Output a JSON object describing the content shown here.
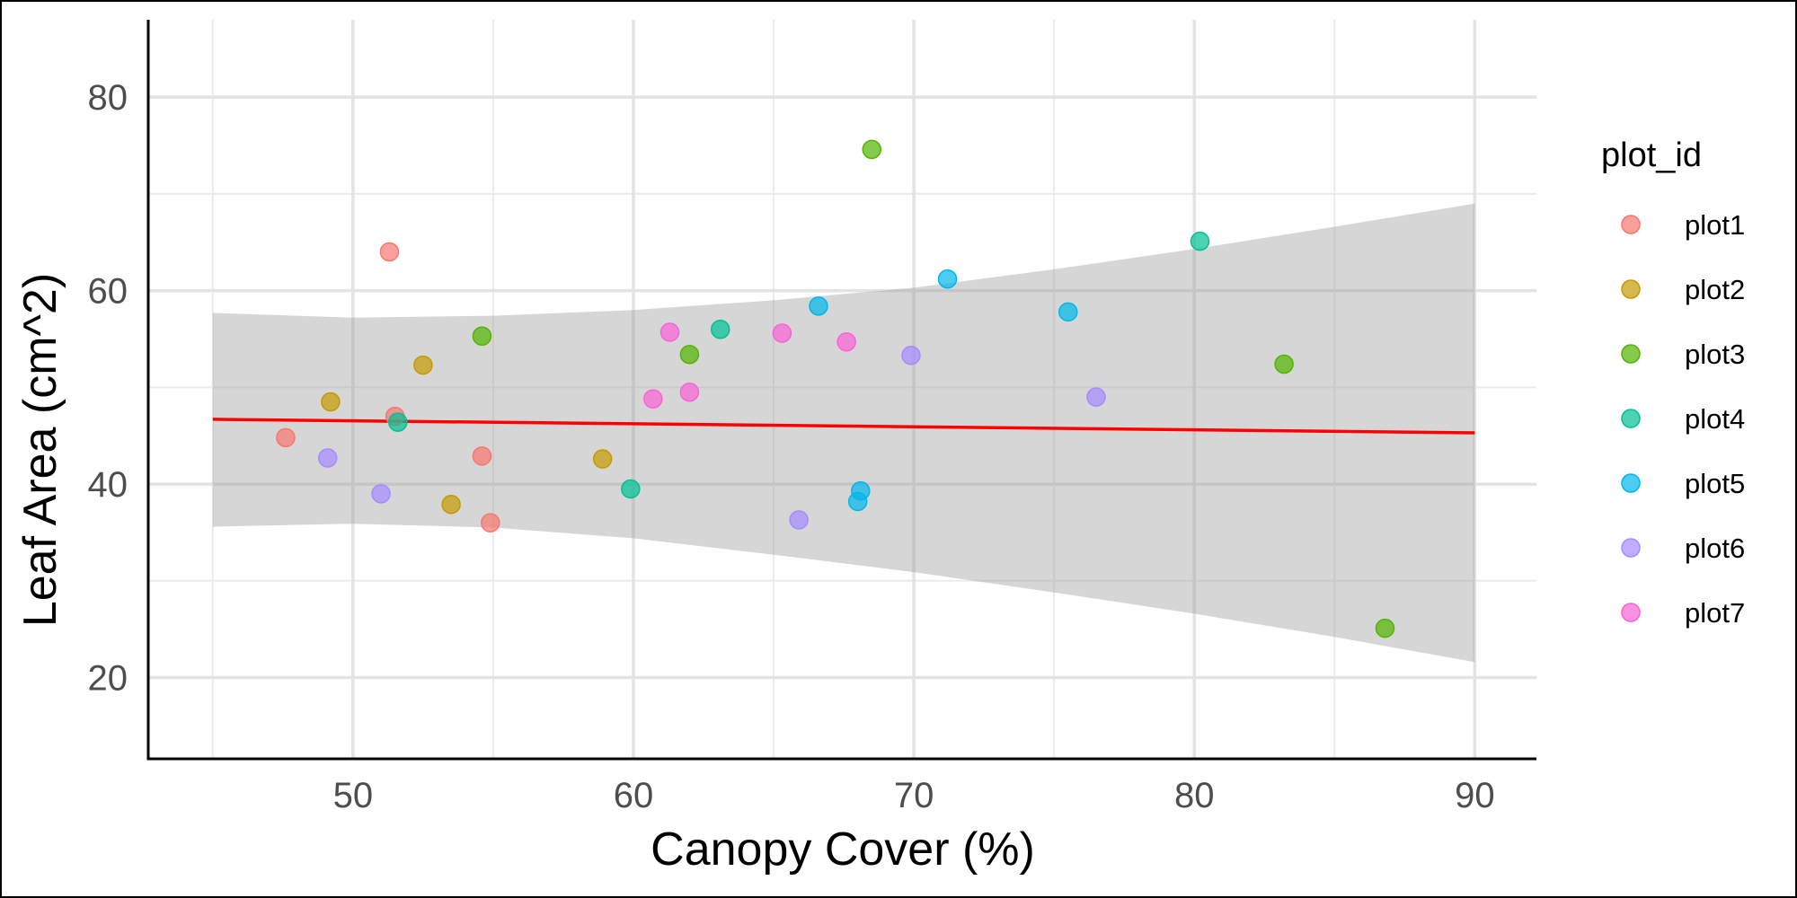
{
  "chart_data": {
    "type": "scatter",
    "xlabel": "Canopy Cover (%)",
    "ylabel": "Leaf Area (cm^2)",
    "xlim": [
      42.7,
      92.2
    ],
    "ylim": [
      11.6,
      88.0
    ],
    "x_ticks": [
      50,
      60,
      70,
      80,
      90
    ],
    "y_ticks": [
      20,
      40,
      60,
      80
    ],
    "grid": true,
    "legend": {
      "title": "plot_id",
      "position": "right"
    },
    "series": [
      {
        "name": "plot1",
        "color": "#F8766D",
        "points": [
          [
            47.6,
            44.8
          ],
          [
            51.3,
            64.0
          ],
          [
            51.5,
            47.0
          ],
          [
            54.6,
            42.9
          ],
          [
            54.9,
            36.0
          ]
        ]
      },
      {
        "name": "plot2",
        "color": "#C49A00",
        "points": [
          [
            49.2,
            48.5
          ],
          [
            52.5,
            52.3
          ],
          [
            53.5,
            37.9
          ],
          [
            58.9,
            42.6
          ]
        ]
      },
      {
        "name": "plot3",
        "color": "#53B400",
        "points": [
          [
            54.6,
            55.3
          ],
          [
            62.0,
            53.4
          ],
          [
            68.5,
            74.6
          ],
          [
            83.2,
            52.4
          ],
          [
            86.8,
            25.1
          ]
        ]
      },
      {
        "name": "plot4",
        "color": "#00C094",
        "points": [
          [
            51.6,
            46.4
          ],
          [
            59.9,
            39.5
          ],
          [
            63.1,
            56.0
          ],
          [
            80.2,
            65.1
          ]
        ]
      },
      {
        "name": "plot5",
        "color": "#00B6EB",
        "points": [
          [
            66.6,
            58.4
          ],
          [
            68.0,
            38.2
          ],
          [
            68.1,
            39.3
          ],
          [
            71.2,
            61.2
          ],
          [
            75.5,
            57.8
          ]
        ]
      },
      {
        "name": "plot6",
        "color": "#A58AFF",
        "points": [
          [
            49.1,
            42.7
          ],
          [
            51.0,
            39.0
          ],
          [
            65.9,
            36.3
          ],
          [
            69.9,
            53.3
          ],
          [
            76.5,
            49.0
          ]
        ]
      },
      {
        "name": "plot7",
        "color": "#FB61D7",
        "points": [
          [
            60.7,
            48.8
          ],
          [
            61.3,
            55.7
          ],
          [
            62.0,
            49.5
          ],
          [
            65.3,
            55.6
          ],
          [
            67.6,
            54.7
          ]
        ]
      }
    ],
    "fit_line": {
      "color": "#FF0000",
      "x": [
        45,
        90
      ],
      "y": [
        46.7,
        45.3
      ]
    },
    "confidence_band": {
      "color": "#999999",
      "x": [
        45,
        50,
        55,
        60,
        65,
        70,
        75,
        80,
        85,
        90
      ],
      "upper": [
        57.7,
        57.2,
        57.4,
        58.0,
        59.0,
        60.3,
        62.2,
        64.3,
        66.6,
        69.0
      ],
      "lower": [
        35.6,
        35.9,
        35.5,
        34.4,
        32.7,
        30.9,
        28.8,
        26.6,
        24.2,
        21.6
      ]
    }
  }
}
